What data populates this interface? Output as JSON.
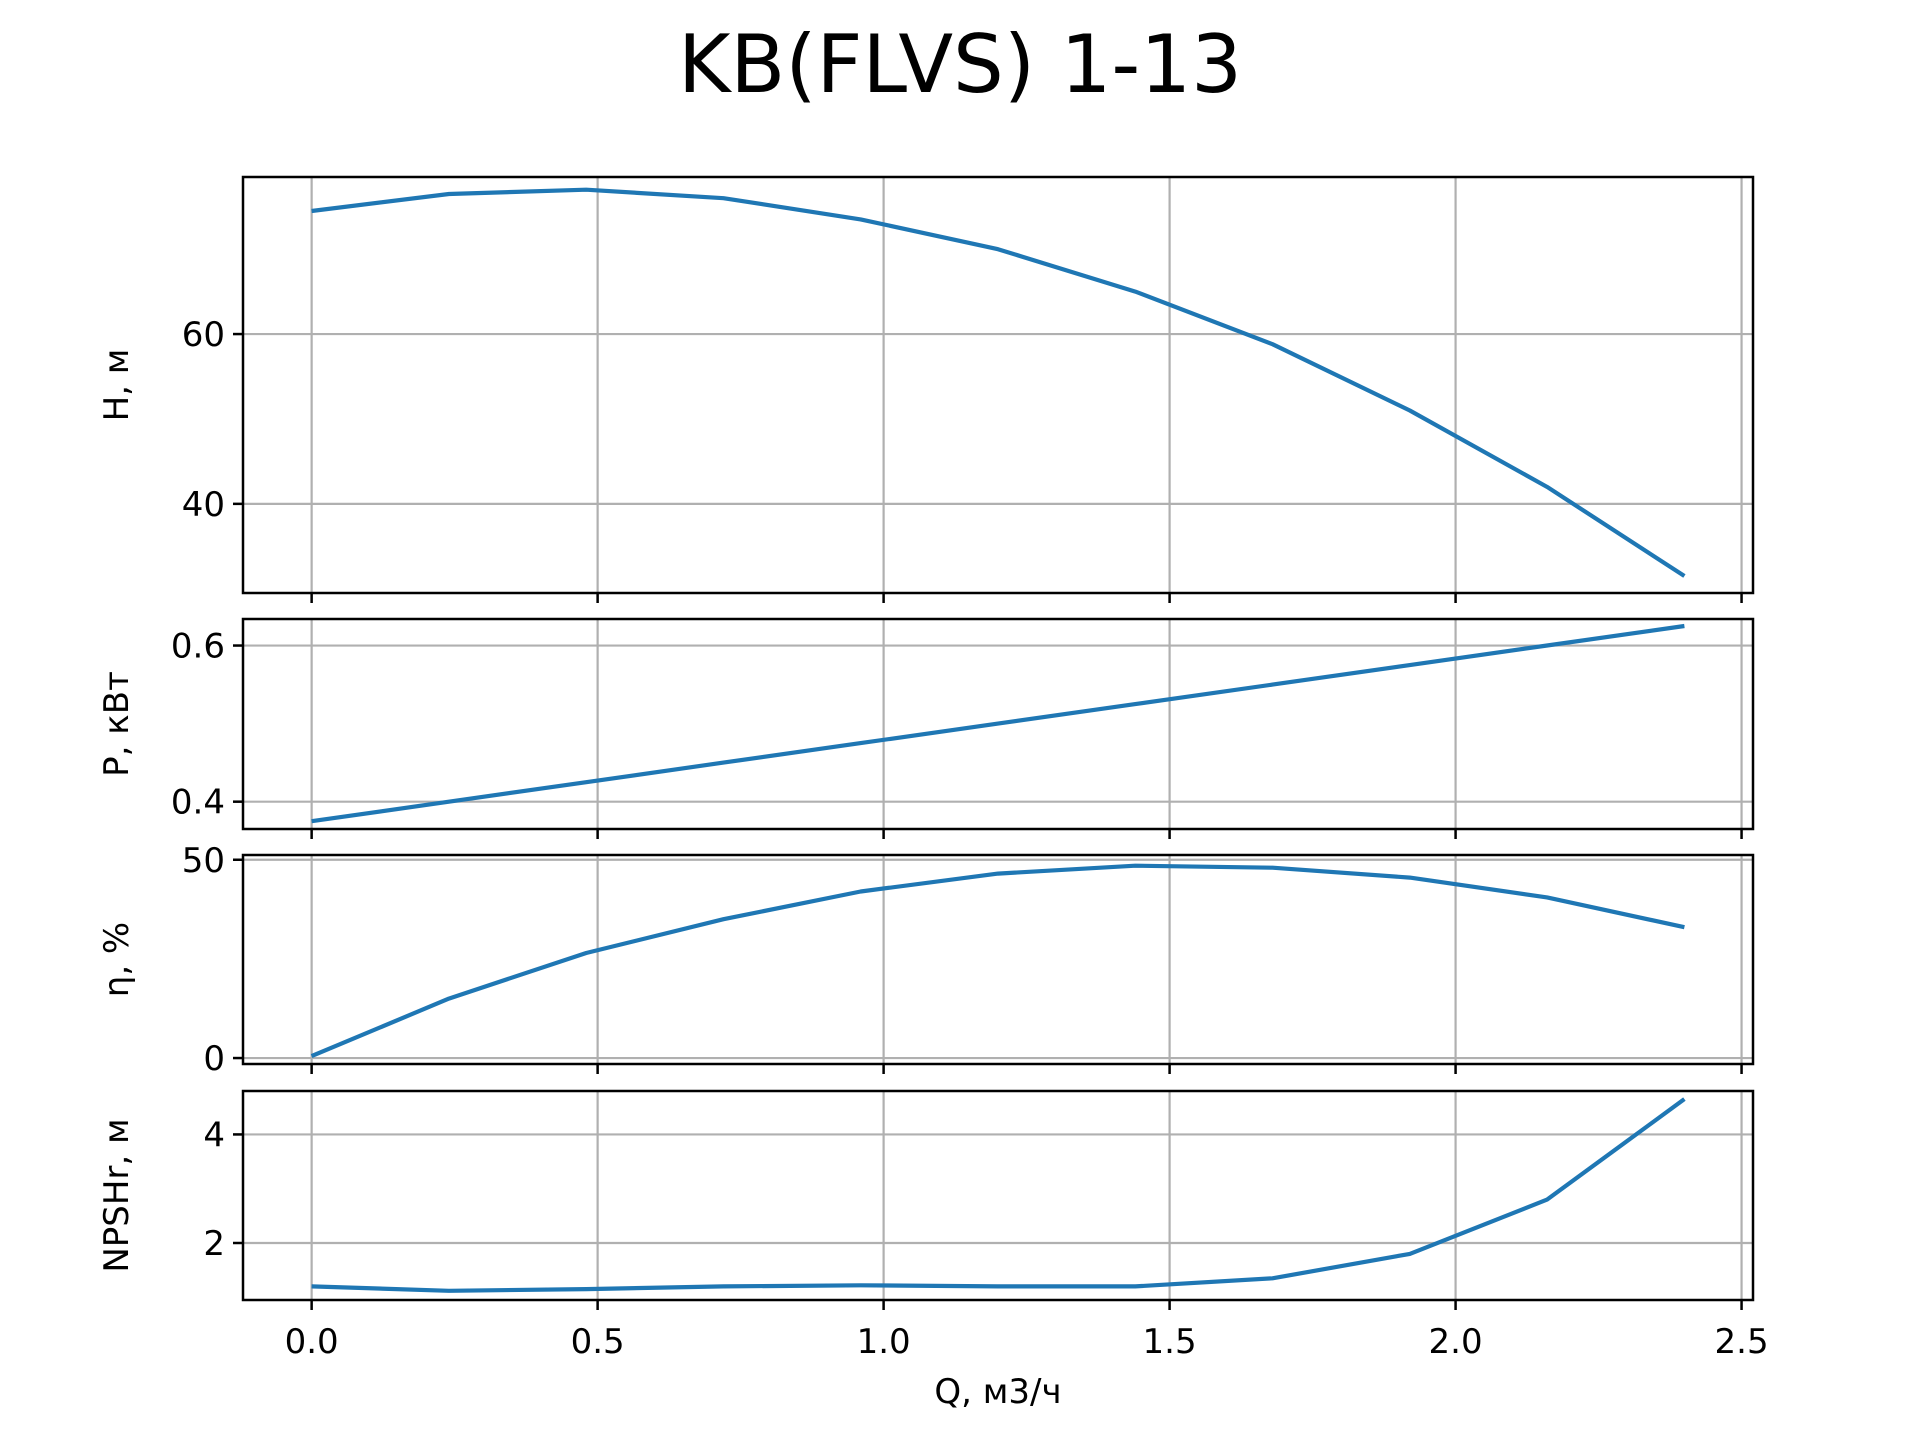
{
  "title": "KB(FLVS) 1-13",
  "colors": {
    "line": "#1f77b4",
    "grid": "#b0b0b0"
  },
  "chart_data": {
    "type": "line",
    "title": "KB(FLVS) 1-13",
    "shared_x": {
      "label": "Q, м3/ч",
      "lim": [
        -0.12,
        2.52
      ],
      "ticks": [
        0.0,
        0.5,
        1.0,
        1.5,
        2.0,
        2.5
      ],
      "tick_labels": [
        "0.0",
        "0.5",
        "1.0",
        "1.5",
        "2.0",
        "2.5"
      ],
      "x": [
        0.0,
        0.24,
        0.48,
        0.72,
        0.96,
        1.2,
        1.44,
        1.68,
        1.92,
        2.16,
        2.4
      ]
    },
    "grid": true,
    "panels": [
      {
        "id": "head",
        "ylabel": "H, м",
        "ylim": [
          29.5,
          78.5
        ],
        "yticks": [
          40,
          60
        ],
        "ytick_labels": [
          "40",
          "60"
        ],
        "values": [
          74.5,
          76.5,
          77.0,
          76.0,
          73.5,
          70.0,
          65.0,
          58.8,
          51.0,
          42.0,
          31.5
        ]
      },
      {
        "id": "power",
        "ylabel": "P, кВт",
        "ylim": [
          0.365,
          0.634
        ],
        "yticks": [
          0.4,
          0.6
        ],
        "ytick_labels": [
          "0.4",
          "0.6"
        ],
        "values": [
          0.375,
          0.4,
          0.425,
          0.45,
          0.475,
          0.5,
          0.525,
          0.55,
          0.575,
          0.6,
          0.625
        ]
      },
      {
        "id": "efficiency",
        "ylabel": "η, %",
        "ylim": [
          -1.5,
          51.2
        ],
        "yticks": [
          0,
          50
        ],
        "ytick_labels": [
          "0",
          "50"
        ],
        "values": [
          0.5,
          15.0,
          26.5,
          35.0,
          42.0,
          46.5,
          48.5,
          48.0,
          45.5,
          40.5,
          33.0
        ]
      },
      {
        "id": "npsh",
        "ylabel": "NPSHr, м",
        "ylim": [
          0.95,
          4.8
        ],
        "yticks": [
          2,
          4
        ],
        "ytick_labels": [
          "2",
          "4"
        ],
        "values": [
          1.2,
          1.12,
          1.15,
          1.2,
          1.22,
          1.2,
          1.2,
          1.35,
          1.8,
          2.8,
          4.65
        ]
      }
    ]
  }
}
